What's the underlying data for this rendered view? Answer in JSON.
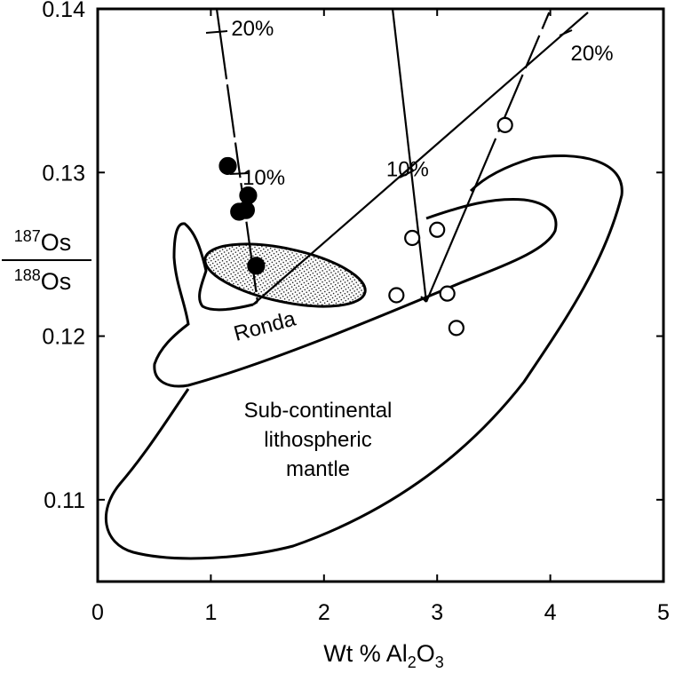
{
  "chart_data": {
    "type": "scatter",
    "title": "",
    "xlabel": {
      "prefix": "Wt % Al",
      "sub1": "2",
      "mid": "O",
      "sub2": "3"
    },
    "ylabel": {
      "num_sup": "187",
      "num": "Os",
      "den_sup": "188",
      "den": "Os"
    },
    "xlim": [
      0,
      5
    ],
    "ylim": [
      0.105,
      0.14
    ],
    "x_ticks": [
      {
        "value": 0,
        "label": "0"
      },
      {
        "value": 1,
        "label": "1"
      },
      {
        "value": 2,
        "label": "2"
      },
      {
        "value": 3,
        "label": "3"
      },
      {
        "value": 4,
        "label": "4"
      },
      {
        "value": 5,
        "label": "5"
      }
    ],
    "y_ticks": [
      {
        "value": 0.11,
        "label": "0.11"
      },
      {
        "value": 0.12,
        "label": "0.12"
      },
      {
        "value": 0.13,
        "label": "0.13"
      },
      {
        "value": 0.14,
        "label": "0.14"
      }
    ],
    "grid": false,
    "series": [
      {
        "marker": "filled-circle",
        "points": [
          {
            "x": 1.15,
            "y": 0.1304
          },
          {
            "x": 1.33,
            "y": 0.1286
          },
          {
            "x": 1.25,
            "y": 0.1276
          },
          {
            "x": 1.31,
            "y": 0.1277
          },
          {
            "x": 1.4,
            "y": 0.1243
          }
        ]
      },
      {
        "marker": "open-circle",
        "points": [
          {
            "x": 3.6,
            "y": 0.1329
          },
          {
            "x": 2.78,
            "y": 0.126
          },
          {
            "x": 3.0,
            "y": 0.1265
          },
          {
            "x": 2.64,
            "y": 0.1225
          },
          {
            "x": 3.09,
            "y": 0.1226
          },
          {
            "x": 3.17,
            "y": 0.1205
          }
        ]
      }
    ],
    "regions": [
      {
        "label": "Sub-continental\nlithospheric\nmantle"
      },
      {
        "label": "Ronda"
      },
      {
        "label": "",
        "fill": "stippled"
      }
    ],
    "annotations": [
      {
        "text": "20%",
        "x": 1.18,
        "y": 0.1388
      },
      {
        "text": "10%",
        "x": 1.28,
        "y": 0.1297
      },
      {
        "text": "10%",
        "x": 2.55,
        "y": 0.1302
      },
      {
        "text": "20%",
        "x": 4.18,
        "y": 0.1373
      }
    ]
  }
}
